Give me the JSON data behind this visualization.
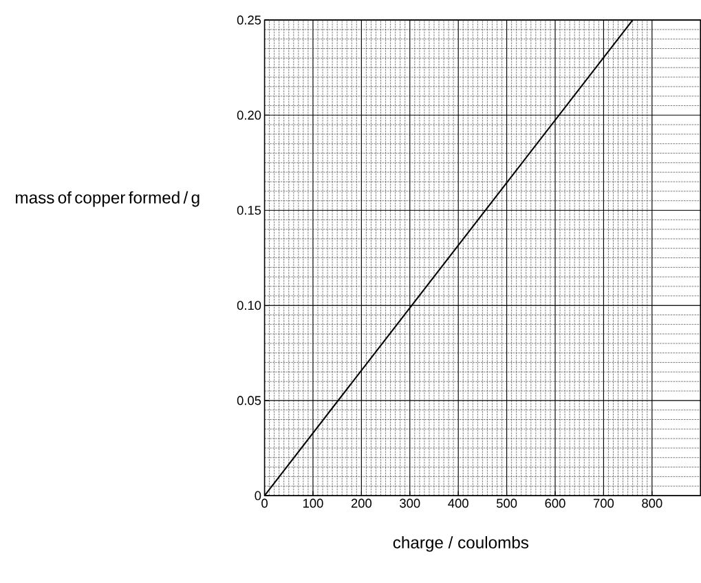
{
  "chart_data": {
    "type": "line",
    "xlabel": "charge / coulombs",
    "ylabel": "mass of copper formed / g",
    "x": [
      0,
      760
    ],
    "series": [
      {
        "color": "#000000",
        "values": [
          0,
          0.25
        ]
      }
    ],
    "xlim": [
      0,
      900
    ],
    "ylim": [
      0,
      0.25
    ],
    "xticks": [
      0,
      100,
      200,
      300,
      400,
      500,
      600,
      700,
      800
    ],
    "yticks": [
      0,
      0.05,
      {
        "value": 0.1,
        "label": "0.10"
      },
      0.15,
      {
        "value": 0.2,
        "label": "0.20"
      },
      0.25
    ],
    "grid": true,
    "marker": "none",
    "line_style": "solid"
  }
}
